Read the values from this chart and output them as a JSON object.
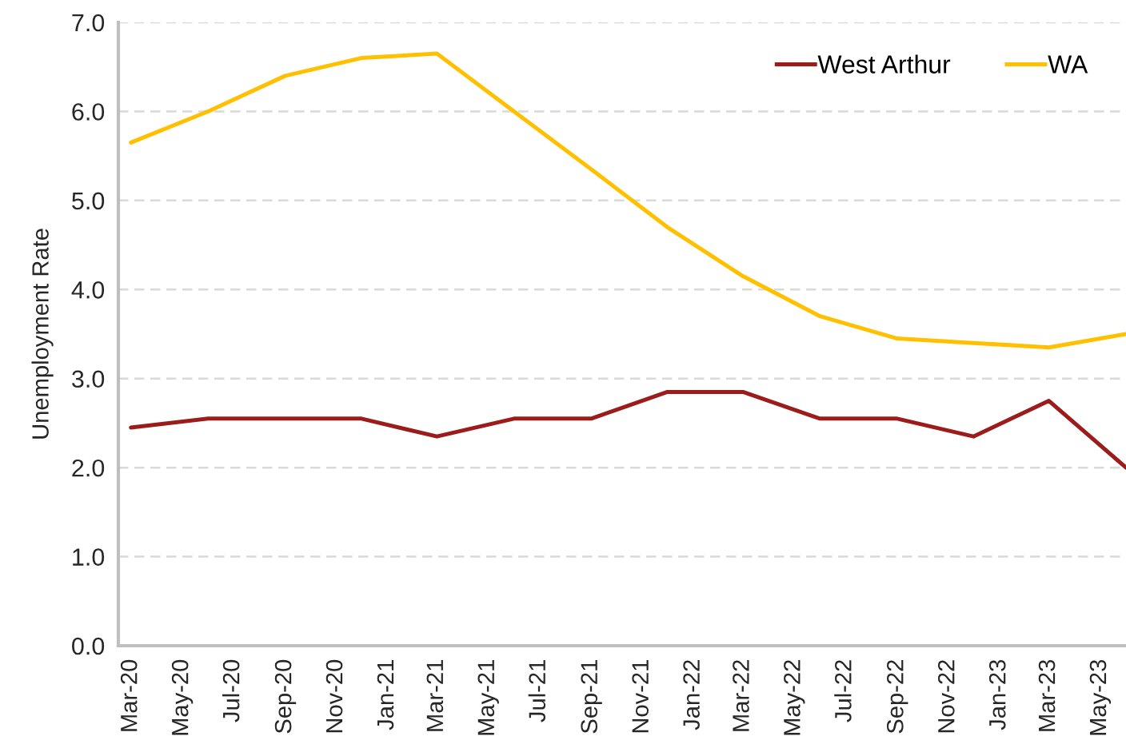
{
  "chart_data": {
    "type": "line",
    "ylabel": "Unemployment Rate",
    "x": [
      "2020-03",
      "2020-06",
      "2020-09",
      "2020-12",
      "2021-03",
      "2021-06",
      "2021-09",
      "2021-12",
      "2022-03",
      "2022-06",
      "2022-09",
      "2022-12",
      "2023-03",
      "2023-06"
    ],
    "series": [
      {
        "name": "West Arthur",
        "color": "#9c1c1c",
        "values": [
          2.45,
          2.55,
          2.55,
          2.55,
          2.35,
          2.55,
          2.55,
          2.85,
          2.85,
          2.55,
          2.55,
          2.35,
          2.75,
          2.0
        ]
      },
      {
        "name": "WA",
        "color": "#ffc000",
        "values": [
          5.65,
          6.0,
          6.4,
          6.6,
          6.65,
          6.0,
          5.35,
          4.7,
          4.15,
          3.7,
          3.45,
          3.4,
          3.35,
          3.5
        ]
      }
    ],
    "xlim": [
      "2020-02-15",
      "2023-06"
    ],
    "xticks": [
      {
        "value": "2020-03",
        "label": "Mar-20"
      },
      {
        "value": "2020-05",
        "label": "May-20"
      },
      {
        "value": "2020-07",
        "label": "Jul-20"
      },
      {
        "value": "2020-09",
        "label": "Sep-20"
      },
      {
        "value": "2020-11",
        "label": "Nov-20"
      },
      {
        "value": "2021-01",
        "label": "Jan-21"
      },
      {
        "value": "2021-03",
        "label": "Mar-21"
      },
      {
        "value": "2021-05",
        "label": "May-21"
      },
      {
        "value": "2021-07",
        "label": "Jul-21"
      },
      {
        "value": "2021-09",
        "label": "Sep-21"
      },
      {
        "value": "2021-11",
        "label": "Nov-21"
      },
      {
        "value": "2022-01",
        "label": "Jan-22"
      },
      {
        "value": "2022-03",
        "label": "Mar-22"
      },
      {
        "value": "2022-05",
        "label": "May-22"
      },
      {
        "value": "2022-07",
        "label": "Jul-22"
      },
      {
        "value": "2022-09",
        "label": "Sep-22"
      },
      {
        "value": "2022-11",
        "label": "Nov-22"
      },
      {
        "value": "2023-01",
        "label": "Jan-23"
      },
      {
        "value": "2023-03",
        "label": "Mar-23"
      },
      {
        "value": "2023-05",
        "label": "May-23"
      }
    ],
    "ylim": [
      0,
      7
    ],
    "yticks": [
      {
        "value": 0,
        "label": "0.0"
      },
      {
        "value": 1,
        "label": "1.0"
      },
      {
        "value": 2,
        "label": "2.0"
      },
      {
        "value": 3,
        "label": "3.0"
      },
      {
        "value": 4,
        "label": "4.0"
      },
      {
        "value": 5,
        "label": "5.0"
      },
      {
        "value": 6,
        "label": "6.0"
      },
      {
        "value": 7,
        "label": "7.0"
      }
    ],
    "grid": "y",
    "legend": "top right"
  }
}
